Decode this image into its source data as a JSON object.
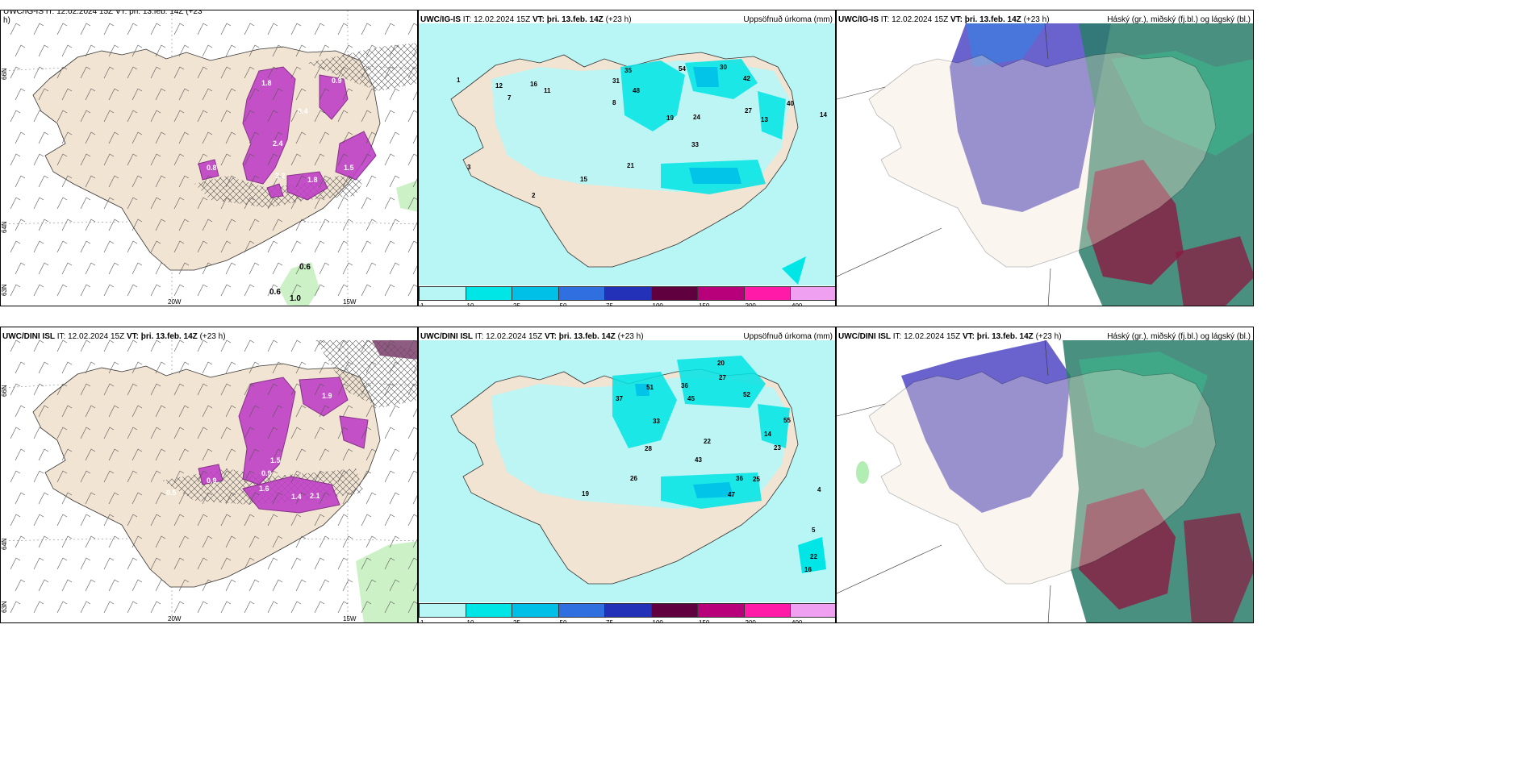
{
  "panels": {
    "top_left": {
      "header": "UWC/IG-IS IT: 12.02.2024 15Z VT: þri. 13.feb. 14Z (+23",
      "header_cont": "h)"
    },
    "top_mid": {
      "model": "UWC/IG-IS",
      "it": "IT: 12.02.2024 15Z",
      "vt": "VT: þri. 13.feb. 14Z",
      "lead": "(+23 h)",
      "right": "Uppsöfnuð úrkoma (mm)"
    },
    "top_right": {
      "model": "UWC/IG-IS",
      "it": "IT: 12.02.2024 15Z",
      "vt": "VT: þri. 13.feb. 14Z",
      "lead": "(+23 h)",
      "right": "Háský (gr.), miðský (fj.bl.) og lágský (bl.)"
    },
    "bot_left": {
      "model": "UWC/DINI ISL",
      "it": "IT: 12.02.2024 15Z",
      "vt": "VT: þri. 13.feb. 14Z",
      "lead": "(+23 h)"
    },
    "bot_mid": {
      "model": "UWC/DINI ISL",
      "it": "IT: 12.02.2024 15Z",
      "vt": "VT: þri. 13.feb. 14Z",
      "lead": "(+23 h)",
      "right": "Uppsöfnuð úrkoma (mm)"
    },
    "bot_right": {
      "model": "UWC/DINI ISL",
      "it": "IT: 12.02.2024 15Z",
      "vt": "VT: þri. 13.feb. 14Z",
      "lead": "(+23 h)",
      "right": "Háský (gr.), miðský (fj.bl.) og lágský (bl.)"
    }
  },
  "axes": {
    "lon1": "20W",
    "lon2": "15W",
    "lat66": "66N",
    "lat64": "64N",
    "lat63": "63N"
  },
  "colorbar": {
    "labels": [
      "1",
      "10",
      "25",
      "50",
      "75",
      "100",
      "150",
      "200",
      "400"
    ],
    "colors": [
      "#b8f5f5",
      "#00e5e5",
      "#00c0e8",
      "#2f6fe0",
      "#2231b8",
      "#60003f",
      "#b8007a",
      "#ff1aa8",
      "#f0a0f0"
    ]
  },
  "top_left_values": [
    "1.8",
    "0.9",
    "2.4",
    "1.5",
    "0.8",
    "3.2",
    "1.8",
    "0.4",
    "0.6",
    "0.6",
    "1.0"
  ],
  "bot_left_values": [
    "1.9",
    "1.5",
    "0.9",
    "1.4",
    "2.1",
    "1.6",
    "0.9",
    "0.5"
  ],
  "top_mid_values": [
    "3",
    "1",
    "12",
    "7",
    "16",
    "11",
    "35",
    "31",
    "48",
    "30",
    "54",
    "42",
    "13",
    "33",
    "27",
    "24",
    "19",
    "40",
    "21",
    "8",
    "15",
    "2",
    "14"
  ],
  "bot_mid_values": [
    "20",
    "27",
    "36",
    "45",
    "52",
    "51",
    "37",
    "33",
    "28",
    "22",
    "43",
    "36",
    "47",
    "55",
    "25",
    "14",
    "23",
    "26",
    "19",
    "22",
    "16",
    "5",
    "4"
  ]
}
